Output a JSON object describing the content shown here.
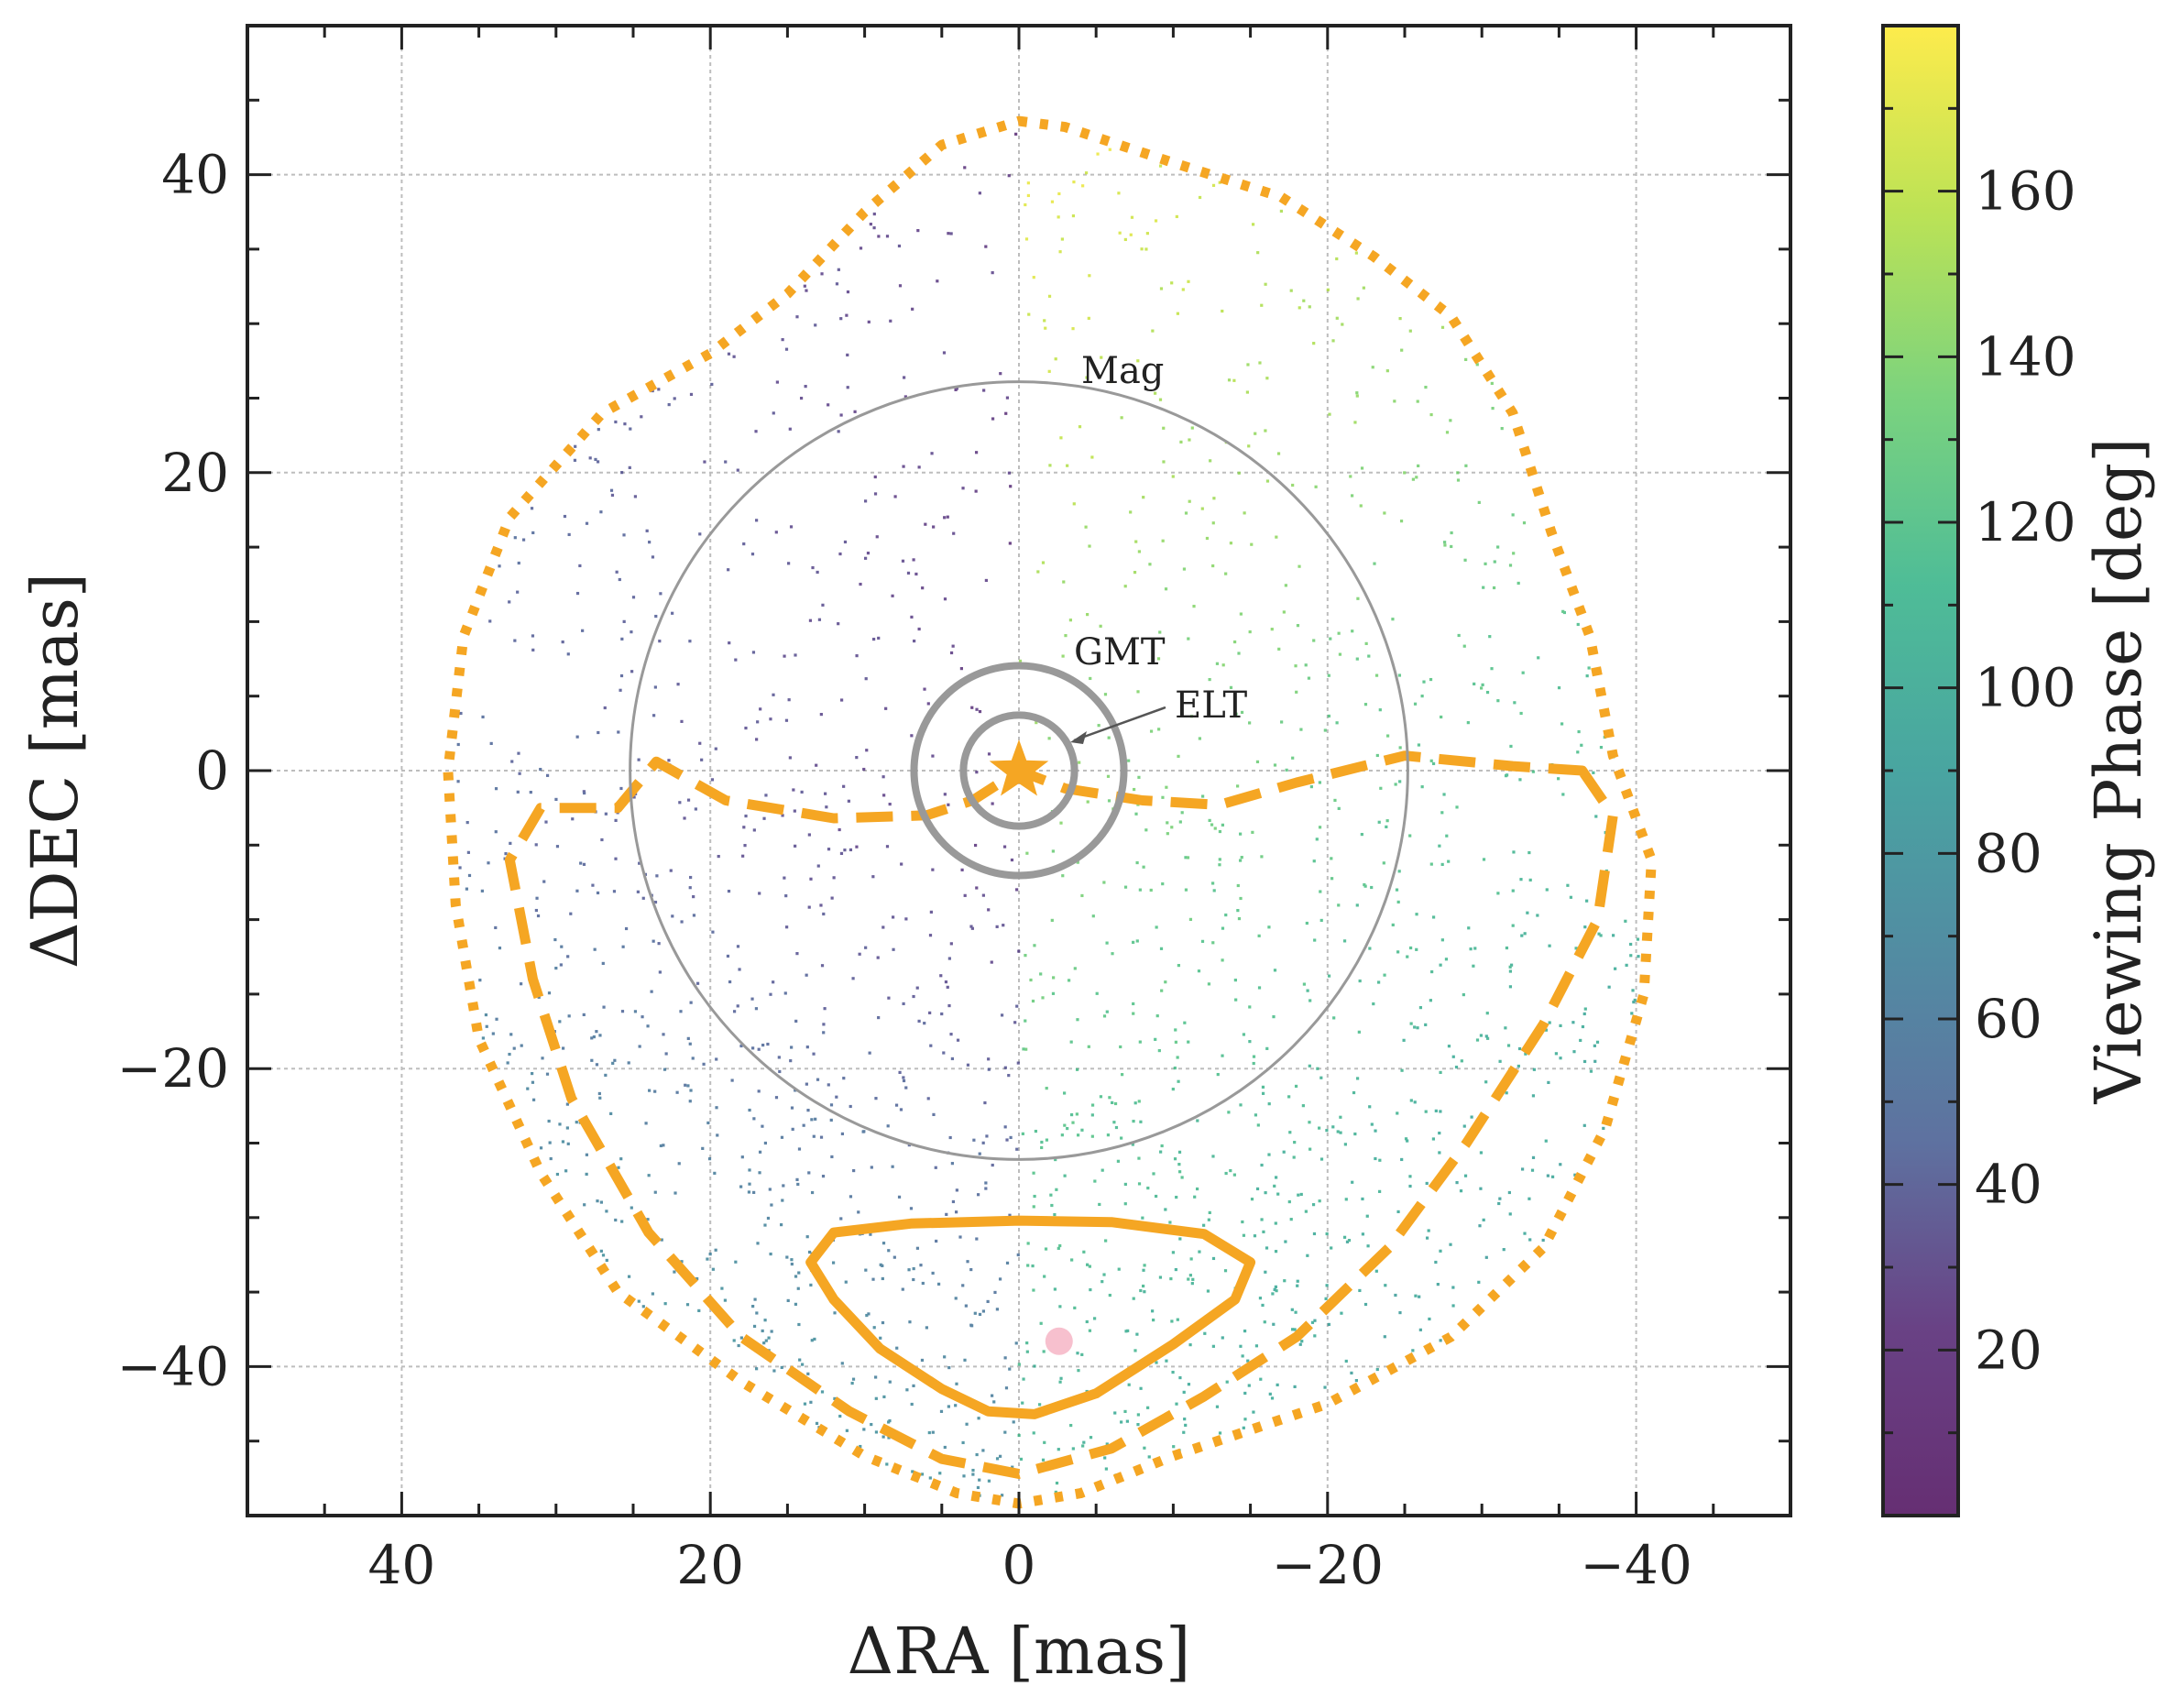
{
  "chart_data": {
    "type": "scatter",
    "xlabel": "ΔRA [mas]",
    "ylabel": "ΔDEC [mas]",
    "xlim": [
      50,
      -50
    ],
    "ylim": [
      -50,
      50
    ],
    "x_ticks": [
      40,
      20,
      0,
      -20,
      -40
    ],
    "y_ticks": [
      -40,
      -20,
      0,
      20,
      40
    ],
    "x_tick_labels": [
      "40",
      "20",
      "0",
      "−20",
      "−40"
    ],
    "y_tick_labels": [
      "−40",
      "−20",
      "0",
      "20",
      "40"
    ],
    "grid": true,
    "colorbar": {
      "label": "Viewing Phase [deg]",
      "range": [
        0,
        180
      ],
      "ticks": [
        20,
        40,
        60,
        80,
        100,
        120,
        140,
        160
      ],
      "tick_labels": [
        "20",
        "40",
        "60",
        "80",
        "100",
        "120",
        "140",
        "160"
      ],
      "colormap": "viridis"
    },
    "circles": [
      {
        "label": "Mag",
        "radius": 25.2,
        "color": "#999999"
      },
      {
        "label": "GMT",
        "radius": 6.8,
        "color": "#999999"
      },
      {
        "label": "ELT",
        "radius": 3.6,
        "color": "#999999"
      }
    ],
    "annotations": [
      "Mag",
      "GMT",
      "ELT"
    ],
    "star_marker": {
      "x": 0,
      "y": 0,
      "color": "#f5a623"
    },
    "true_position": {
      "x": -2.6,
      "y": -38.3,
      "color": "#f7c0ce"
    },
    "contours": {
      "inner_solid": [
        [
          0,
          -30.2
        ],
        [
          -6,
          -30.3
        ],
        [
          -12,
          -31.1
        ],
        [
          -15,
          -33
        ],
        [
          -14,
          -35.5
        ],
        [
          -10,
          -38.5
        ],
        [
          -5,
          -41.8
        ],
        [
          -1,
          -43.2
        ],
        [
          2,
          -43
        ],
        [
          5,
          -41.5
        ],
        [
          9,
          -38.8
        ],
        [
          12,
          -35.5
        ],
        [
          13.5,
          -33
        ],
        [
          12,
          -31
        ],
        [
          7,
          -30.4
        ],
        [
          0,
          -30.2
        ]
      ],
      "middle_dashed": [
        [
          -36.5,
          0
        ],
        [
          -38.5,
          -3
        ],
        [
          -37.5,
          -10
        ],
        [
          -34,
          -17
        ],
        [
          -29,
          -25
        ],
        [
          -24,
          -32
        ],
        [
          -18,
          -38
        ],
        [
          -12,
          -42
        ],
        [
          -6,
          -45.5
        ],
        [
          0,
          -47.2
        ],
        [
          5,
          -46.2
        ],
        [
          11,
          -43
        ],
        [
          18,
          -38
        ],
        [
          24,
          -31
        ],
        [
          29,
          -22
        ],
        [
          31.5,
          -14
        ],
        [
          33,
          -6
        ],
        [
          31,
          -2.5
        ],
        [
          26,
          -2.5
        ],
        [
          23.5,
          0.6
        ],
        [
          19,
          -2
        ],
        [
          12,
          -3.2
        ],
        [
          6,
          -3
        ],
        [
          3,
          -2
        ],
        [
          0,
          0
        ],
        [
          -3,
          -1.2
        ],
        [
          -8,
          -2
        ],
        [
          -13,
          -2.3
        ],
        [
          -18,
          -0.8
        ],
        [
          -25,
          1
        ],
        [
          -32,
          0.3
        ],
        [
          -36.5,
          0
        ]
      ],
      "outer_dotted": [
        [
          0,
          43.6
        ],
        [
          -3,
          43.2
        ],
        [
          -10,
          40.8
        ],
        [
          -17,
          38.5
        ],
        [
          -23,
          34.5
        ],
        [
          -28,
          30.5
        ],
        [
          -32,
          24
        ],
        [
          -34.5,
          16
        ],
        [
          -37,
          9
        ],
        [
          -38.5,
          1
        ],
        [
          -41,
          -6
        ],
        [
          -40.5,
          -15
        ],
        [
          -38,
          -24
        ],
        [
          -34,
          -32
        ],
        [
          -28,
          -38
        ],
        [
          -20,
          -42.5
        ],
        [
          -10,
          -46
        ],
        [
          -4,
          -48.5
        ],
        [
          0,
          -49.2
        ],
        [
          4,
          -48.5
        ],
        [
          10,
          -46
        ],
        [
          18,
          -41
        ],
        [
          26,
          -35
        ],
        [
          31,
          -27
        ],
        [
          35,
          -18
        ],
        [
          36.5,
          -9
        ],
        [
          37,
          0
        ],
        [
          36,
          9
        ],
        [
          33,
          17
        ],
        [
          27,
          24
        ],
        [
          20,
          28
        ],
        [
          15,
          32
        ],
        [
          10,
          37.5
        ],
        [
          5,
          42
        ],
        [
          0,
          43.6
        ]
      ]
    }
  }
}
